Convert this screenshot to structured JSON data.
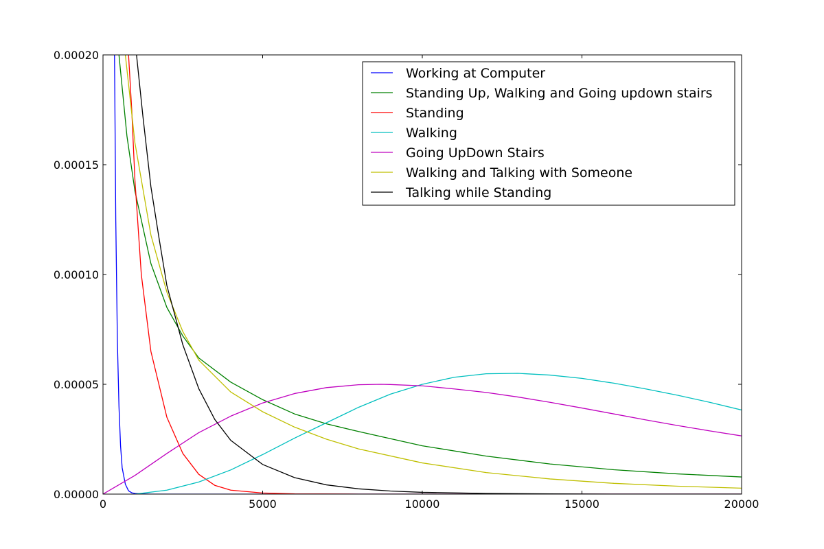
{
  "chart_data": {
    "type": "line",
    "title": "",
    "xlabel": "",
    "ylabel": "",
    "xlim": [
      0,
      20000
    ],
    "ylim": [
      0,
      0.0002
    ],
    "grid": false,
    "legend_position": "top-right",
    "x_ticks": [
      "0",
      "5000",
      "10000",
      "15000",
      "20000"
    ],
    "y_ticks": [
      "0.00000",
      "0.00005",
      "0.00010",
      "0.00015",
      "0.00020"
    ],
    "x_tick_values": [
      0,
      5000,
      10000,
      15000,
      20000
    ],
    "y_tick_values": [
      0,
      5e-05,
      0.0001,
      0.00015,
      0.0002
    ],
    "series": [
      {
        "name": "Working at Computer",
        "color": "#0000ff",
        "x": [
          350,
          400,
          450,
          500,
          550,
          600,
          700,
          800,
          900,
          1000,
          1200,
          1500,
          2000,
          4000,
          20000
        ],
        "y": [
          0.00022,
          0.000125,
          7e-05,
          4e-05,
          2.2e-05,
          1.2e-05,
          4.5e-06,
          1.5e-06,
          6e-07,
          3e-07,
          1e-07,
          0.0,
          0.0,
          0.0,
          0.0
        ]
      },
      {
        "name": "Standing Up, Walking and Going updown stairs",
        "color": "#008000",
        "x": [
          500,
          750,
          1000,
          1500,
          2000,
          2500,
          3000,
          4000,
          5000,
          6000,
          7000,
          8000,
          10000,
          12000,
          14000,
          16000,
          18000,
          20000
        ],
        "y": [
          0.0002,
          0.000163,
          0.000138,
          0.000105,
          8.5e-05,
          7.2e-05,
          6.2e-05,
          5.1e-05,
          4.3e-05,
          3.65e-05,
          3.2e-05,
          2.85e-05,
          2.2e-05,
          1.73e-05,
          1.37e-05,
          1.11e-05,
          9.2e-06,
          7.8e-06
        ]
      },
      {
        "name": "Standing",
        "color": "#ff0000",
        "x": [
          800,
          900,
          1000,
          1200,
          1500,
          2000,
          2500,
          3000,
          3500,
          4000,
          5000,
          6000,
          8000,
          10000,
          20000
        ],
        "y": [
          0.0002,
          0.000175,
          0.000143,
          0.0001,
          6.5e-05,
          3.5e-05,
          1.85e-05,
          9e-06,
          4e-06,
          1.8e-06,
          5e-07,
          1e-07,
          0.0,
          0.0,
          0.0
        ]
      },
      {
        "name": "Walking",
        "color": "#00bfbf",
        "x": [
          1000,
          2000,
          3000,
          4000,
          5000,
          6000,
          7000,
          8000,
          9000,
          10000,
          11000,
          12000,
          13000,
          14000,
          15000,
          16000,
          17000,
          18000,
          19000,
          20000
        ],
        "y": [
          0.0,
          1.8e-06,
          5.5e-06,
          1.1e-05,
          1.8e-05,
          2.55e-05,
          3.25e-05,
          3.95e-05,
          4.55e-05,
          5e-05,
          5.32e-05,
          5.48e-05,
          5.5e-05,
          5.42e-05,
          5.27e-05,
          5.05e-05,
          4.79e-05,
          4.5e-05,
          4.18e-05,
          3.83e-05
        ]
      },
      {
        "name": "Going UpDown Stairs",
        "color": "#bf00bf",
        "x": [
          0,
          1000,
          2000,
          3000,
          4000,
          5000,
          6000,
          7000,
          8000,
          8700,
          9000,
          10000,
          11000,
          12000,
          13000,
          14000,
          15000,
          16000,
          17000,
          18000,
          19000,
          20000
        ],
        "y": [
          0.0,
          8.5e-06,
          1.85e-05,
          2.8e-05,
          3.55e-05,
          4.15e-05,
          4.58e-05,
          4.85e-05,
          4.98e-05,
          5e-05,
          4.99e-05,
          4.93e-05,
          4.79e-05,
          4.63e-05,
          4.42e-05,
          4.18e-05,
          3.92e-05,
          3.65e-05,
          3.38e-05,
          3.12e-05,
          2.88e-05,
          2.65e-05
        ]
      },
      {
        "name": "Walking and Talking with Someone",
        "color": "#bfbf00",
        "x": [
          700,
          1000,
          1500,
          2000,
          2500,
          3000,
          4000,
          5000,
          6000,
          7000,
          8000,
          10000,
          12000,
          14000,
          16000,
          18000,
          20000
        ],
        "y": [
          0.0002,
          0.00016,
          0.000118,
          9.2e-05,
          7.4e-05,
          6.1e-05,
          4.65e-05,
          3.75e-05,
          3.05e-05,
          2.5e-05,
          2.06e-05,
          1.42e-05,
          9.8e-06,
          6.9e-06,
          4.9e-06,
          3.6e-06,
          2.7e-06
        ]
      },
      {
        "name": "Talking while Standing",
        "color": "#000000",
        "x": [
          1050,
          1250,
          1500,
          1750,
          2000,
          2500,
          3000,
          3500,
          4000,
          5000,
          6000,
          7000,
          8000,
          9000,
          10000,
          12000,
          14000,
          16000,
          20000
        ],
        "y": [
          0.0002,
          0.000172,
          0.00014,
          0.000117,
          9.5e-05,
          6.8e-05,
          4.8e-05,
          3.4e-05,
          2.45e-05,
          1.35e-05,
          7.5e-06,
          4.2e-06,
          2.4e-06,
          1.4e-06,
          8e-07,
          3e-07,
          1e-07,
          0.0,
          0.0
        ]
      }
    ]
  }
}
